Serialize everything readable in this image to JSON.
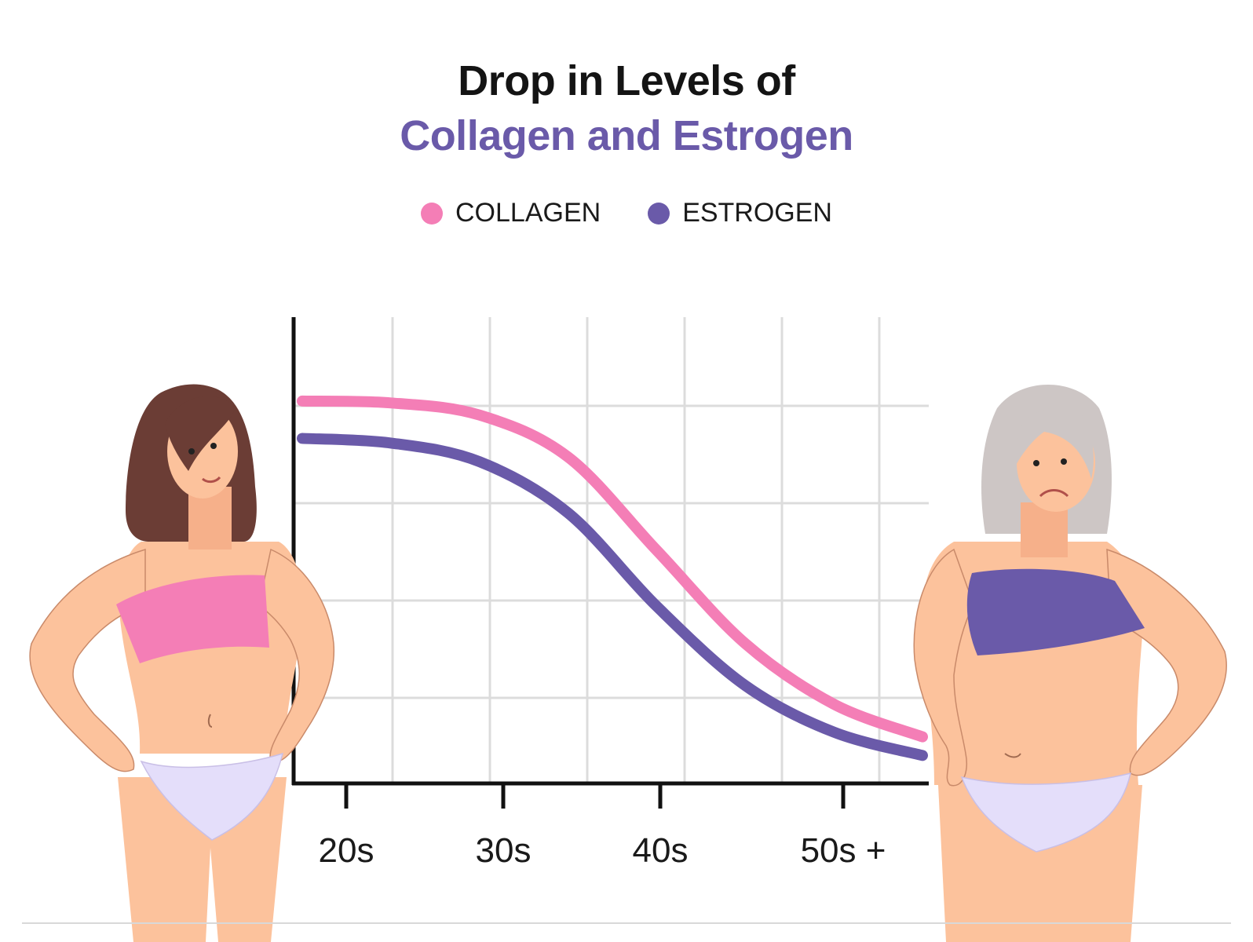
{
  "title_line1": "Drop in Levels of",
  "title_line2": "Collagen and Estrogen",
  "colors": {
    "collagen": "#f47eb6",
    "estrogen": "#6a5aa9",
    "skin": "#fcc29c",
    "young_hair": "#6b3d35",
    "old_hair": "#cdc6c5",
    "underwear": "#e4defa"
  },
  "chart_data": {
    "type": "line",
    "title": "Drop in Levels of Collagen and Estrogen",
    "xlabel": "",
    "ylabel": "",
    "categories": [
      "20s",
      "30s",
      "40s",
      "50s +"
    ],
    "x_range": [
      0,
      3.5
    ],
    "ylim": [
      0,
      5
    ],
    "grid": true,
    "legend_position": "top-center",
    "series": [
      {
        "name": "COLLAGEN",
        "color": "#f47eb6",
        "points": [
          [
            0,
            4.1
          ],
          [
            0.5,
            4.08
          ],
          [
            1,
            3.95
          ],
          [
            1.5,
            3.5
          ],
          [
            2,
            2.5
          ],
          [
            2.5,
            1.5
          ],
          [
            3,
            0.85
          ],
          [
            3.5,
            0.5
          ]
        ]
      },
      {
        "name": "ESTROGEN",
        "color": "#6a5aa9",
        "points": [
          [
            0,
            3.7
          ],
          [
            0.5,
            3.65
          ],
          [
            1,
            3.45
          ],
          [
            1.5,
            2.9
          ],
          [
            2,
            1.9
          ],
          [
            2.5,
            1.05
          ],
          [
            3,
            0.55
          ],
          [
            3.5,
            0.3
          ]
        ]
      }
    ]
  }
}
